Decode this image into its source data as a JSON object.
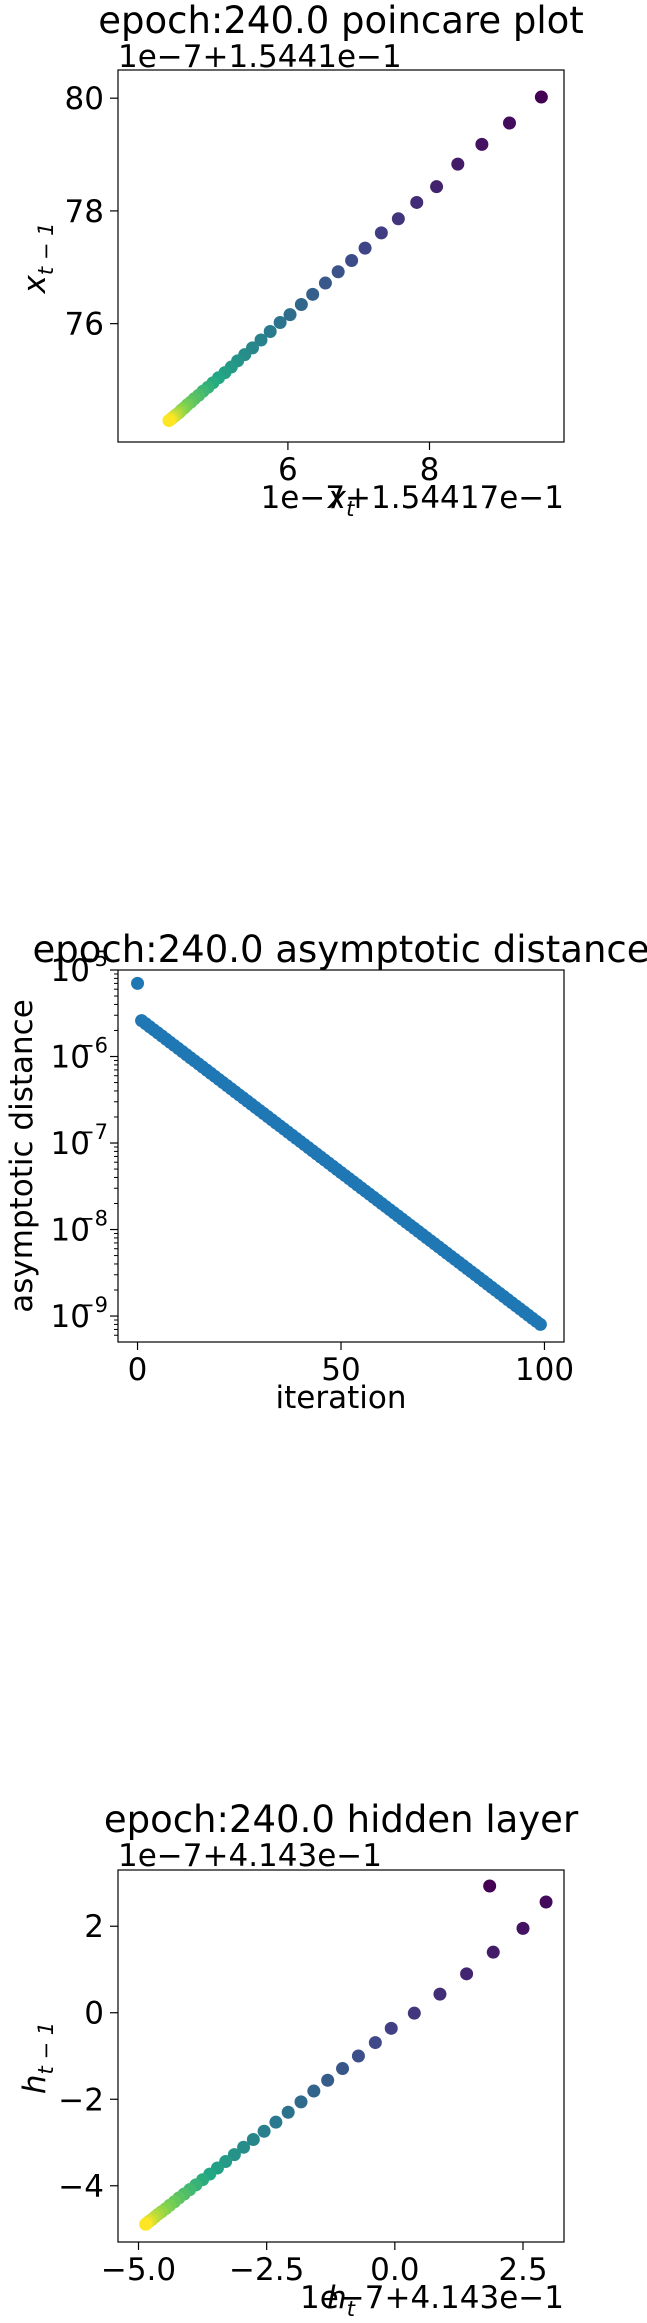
{
  "chart_data": [
    {
      "type": "scatter",
      "title": "epoch:240.0 poincare plot",
      "xlabel": "x_t",
      "ylabel": "x_{t-1}",
      "x_offset_label": "1e−7+1.54417e−1",
      "y_offset_label": "1e−7+1.5441e−1",
      "xticks": [
        6,
        8
      ],
      "yticks": [
        76,
        78,
        80
      ],
      "xlim": [
        3.6,
        9.9
      ],
      "ylim": [
        73.9,
        80.5
      ],
      "colormap": "viridis",
      "points": [
        [
          9.58,
          80.02
        ],
        [
          9.13,
          79.56
        ],
        [
          8.74,
          79.18
        ],
        [
          8.4,
          78.83
        ],
        [
          8.1,
          78.43
        ],
        [
          7.82,
          78.15
        ],
        [
          7.56,
          77.86
        ],
        [
          7.32,
          77.61
        ],
        [
          7.09,
          77.34
        ],
        [
          6.9,
          77.12
        ],
        [
          6.71,
          76.92
        ],
        [
          6.53,
          76.72
        ],
        [
          6.35,
          76.52
        ],
        [
          6.19,
          76.34
        ],
        [
          6.03,
          76.16
        ],
        [
          5.89,
          76.02
        ],
        [
          5.75,
          75.86
        ],
        [
          5.62,
          75.71
        ],
        [
          5.5,
          75.57
        ],
        [
          5.39,
          75.45
        ],
        [
          5.29,
          75.34
        ],
        [
          5.2,
          75.23
        ],
        [
          5.11,
          75.13
        ],
        [
          5.02,
          75.04
        ],
        [
          4.94,
          74.95
        ],
        [
          4.87,
          74.87
        ],
        [
          4.8,
          74.8
        ],
        [
          4.74,
          74.73
        ],
        [
          4.68,
          74.67
        ],
        [
          4.63,
          74.61
        ],
        [
          4.58,
          74.56
        ],
        [
          4.54,
          74.51
        ],
        [
          4.5,
          74.47
        ],
        [
          4.47,
          74.43
        ],
        [
          4.44,
          74.4
        ],
        [
          4.41,
          74.37
        ],
        [
          4.38,
          74.34
        ],
        [
          4.36,
          74.32
        ],
        [
          4.34,
          74.3
        ],
        [
          4.32,
          74.28
        ]
      ]
    },
    {
      "type": "scatter",
      "title": "epoch:240.0 asymptotic distance",
      "xlabel": "iteration",
      "ylabel": "asymptotic distance",
      "xticks": [
        0,
        50,
        100
      ],
      "ytick_exponents": [
        -9,
        -8,
        -7,
        -6,
        -5
      ],
      "xlim": [
        -4.8,
        104.8
      ],
      "ylim_log10": [
        -9.3,
        -5.0
      ],
      "yscale": "log",
      "color": "#1f77b4",
      "first_point": [
        0,
        7e-06
      ],
      "second_point": [
        1,
        2.6e-06
      ],
      "decay_start": 2.4e-06,
      "decay_end": 8e-10,
      "n_points": 100
    },
    {
      "type": "scatter",
      "title": "epoch:240.0 hidden layer",
      "xlabel": "h_t",
      "ylabel": "h_{t-1}",
      "x_offset_label": "1e−7+4.143e−1",
      "y_offset_label": "1e−7+4.143e−1",
      "xticks": [
        -5.0,
        -2.5,
        0.0,
        2.5
      ],
      "xtick_labels": [
        "−5.0",
        "−2.5",
        "0.0",
        "2.5"
      ],
      "yticks": [
        -4,
        -2,
        0,
        2
      ],
      "ytick_labels": [
        "−4",
        "−2",
        "0",
        "2"
      ],
      "xlim": [
        -5.4,
        3.3
      ],
      "ylim": [
        -5.3,
        3.3
      ],
      "colormap": "viridis",
      "points": [
        [
          1.85,
          2.93
        ],
        [
          2.95,
          2.56
        ],
        [
          2.5,
          1.95
        ],
        [
          1.92,
          1.4
        ],
        [
          1.4,
          0.9
        ],
        [
          0.88,
          0.43
        ],
        [
          0.38,
          -0.01
        ],
        [
          -0.07,
          -0.36
        ],
        [
          -0.38,
          -0.69
        ],
        [
          -0.71,
          -1.0
        ],
        [
          -1.02,
          -1.29
        ],
        [
          -1.31,
          -1.56
        ],
        [
          -1.58,
          -1.81
        ],
        [
          -1.83,
          -2.06
        ],
        [
          -2.08,
          -2.3
        ],
        [
          -2.32,
          -2.53
        ],
        [
          -2.55,
          -2.74
        ],
        [
          -2.76,
          -2.93
        ],
        [
          -2.95,
          -3.11
        ],
        [
          -3.13,
          -3.28
        ],
        [
          -3.3,
          -3.44
        ],
        [
          -3.46,
          -3.59
        ],
        [
          -3.61,
          -3.73
        ],
        [
          -3.75,
          -3.86
        ],
        [
          -3.88,
          -3.98
        ],
        [
          -4.0,
          -4.09
        ],
        [
          -4.11,
          -4.19
        ],
        [
          -4.21,
          -4.28
        ],
        [
          -4.3,
          -4.37
        ],
        [
          -4.39,
          -4.45
        ],
        [
          -4.47,
          -4.53
        ],
        [
          -4.55,
          -4.6
        ],
        [
          -4.62,
          -4.66
        ],
        [
          -4.68,
          -4.72
        ],
        [
          -4.74,
          -4.78
        ],
        [
          -4.79,
          -4.82
        ],
        [
          -4.83,
          -4.86
        ],
        [
          -4.86,
          -4.89
        ]
      ]
    }
  ]
}
